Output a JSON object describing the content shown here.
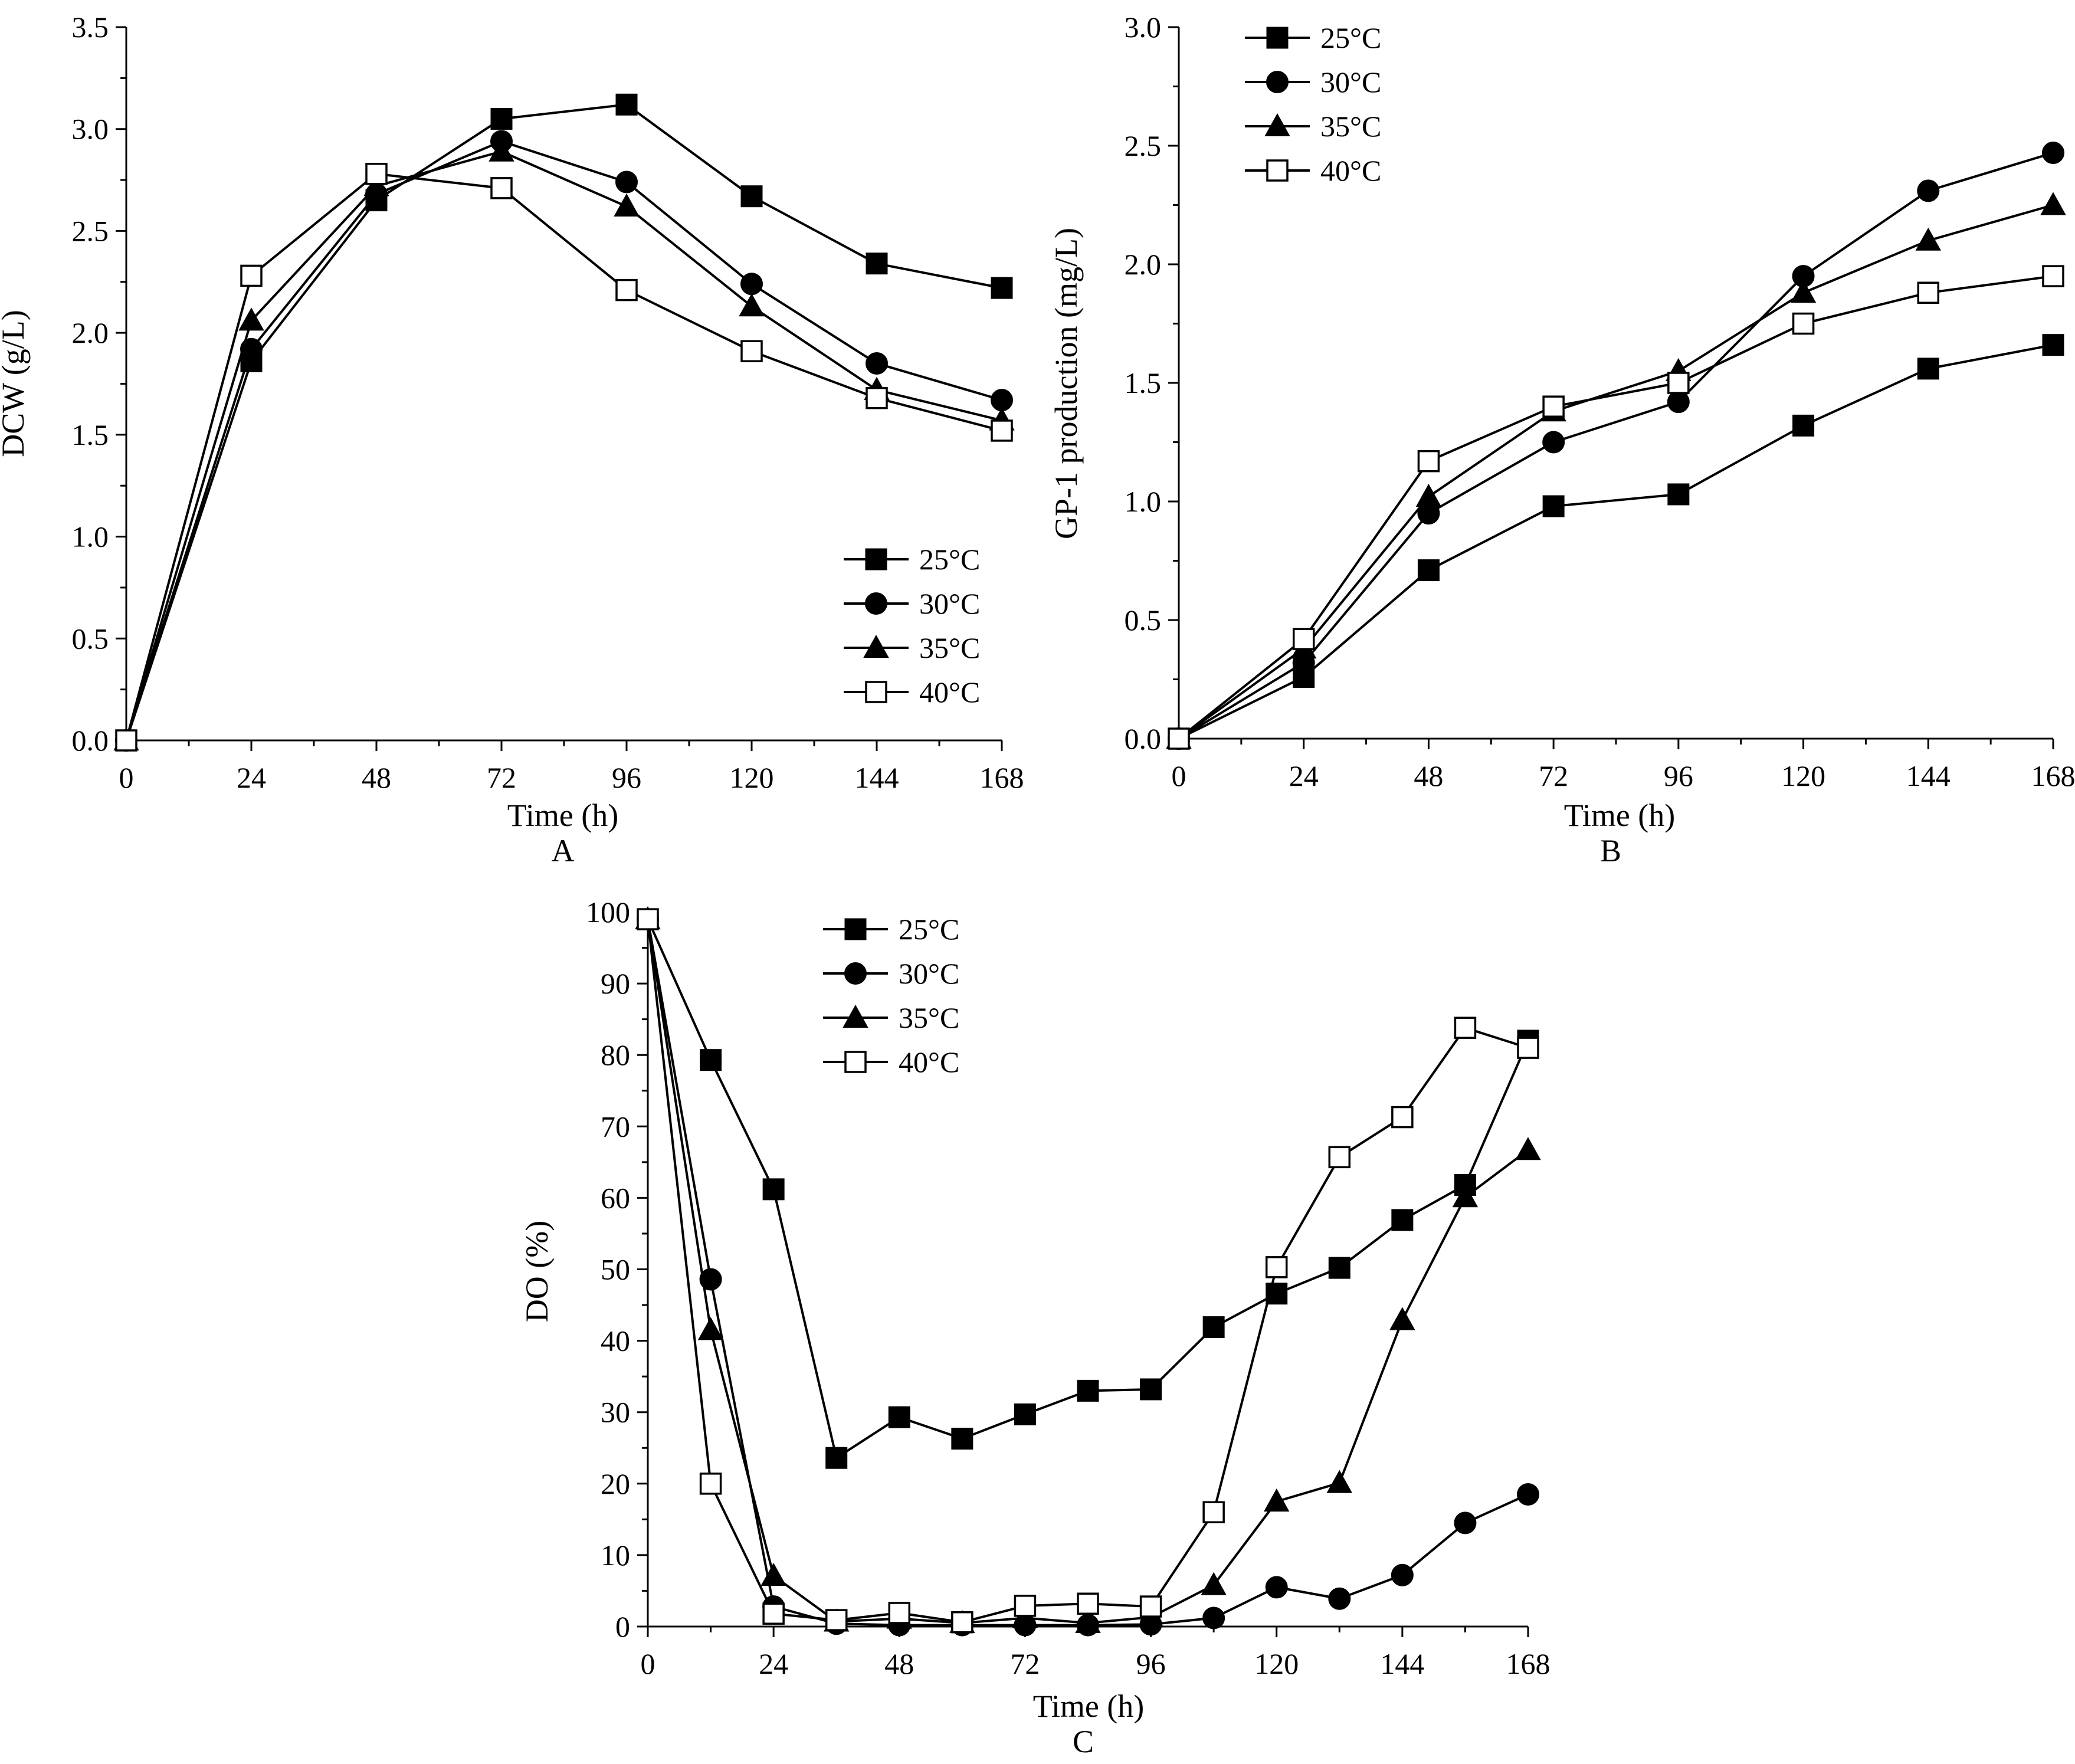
{
  "chart_data": [
    {
      "panel": "A",
      "type": "line",
      "xlabel": "Time (h)",
      "ylabel": "DCW (g/L)",
      "xlim": [
        0,
        168
      ],
      "ylim": [
        0,
        3.5
      ],
      "xticks": [
        "0",
        "24",
        "48",
        "72",
        "96",
        "120",
        "144",
        "168"
      ],
      "yticks": [
        "0.0",
        "0.5",
        "1.0",
        "1.5",
        "2.0",
        "2.5",
        "3.0",
        "3.5"
      ],
      "legend_position": "bottom-right",
      "series": [
        {
          "name": "25°C",
          "marker": "square-filled",
          "points": [
            [
              0,
              0
            ],
            [
              24,
              1.86
            ],
            [
              48,
              2.65
            ],
            [
              72,
              3.05
            ],
            [
              96,
              3.12
            ],
            [
              120,
              2.67
            ],
            [
              144,
              2.34
            ],
            [
              168,
              2.22
            ]
          ]
        },
        {
          "name": "30°C",
          "marker": "circle-filled",
          "points": [
            [
              0,
              0
            ],
            [
              24,
              1.92
            ],
            [
              48,
              2.68
            ],
            [
              72,
              2.94
            ],
            [
              96,
              2.74
            ],
            [
              120,
              2.24
            ],
            [
              144,
              1.85
            ],
            [
              168,
              1.67
            ]
          ]
        },
        {
          "name": "35°C",
          "marker": "triangle-filled",
          "points": [
            [
              0,
              0
            ],
            [
              24,
              2.06
            ],
            [
              48,
              2.72
            ],
            [
              72,
              2.89
            ],
            [
              96,
              2.62
            ],
            [
              120,
              2.13
            ],
            [
              144,
              1.72
            ],
            [
              168,
              1.57
            ]
          ]
        },
        {
          "name": "40°C",
          "marker": "square-open",
          "points": [
            [
              0,
              0
            ],
            [
              24,
              2.28
            ],
            [
              48,
              2.78
            ],
            [
              72,
              2.71
            ],
            [
              96,
              2.21
            ],
            [
              120,
              1.91
            ],
            [
              144,
              1.68
            ],
            [
              168,
              1.52
            ]
          ]
        }
      ]
    },
    {
      "panel": "B",
      "type": "line",
      "xlabel": "Time (h)",
      "ylabel": "GP-1 production (mg/L)",
      "xlim": [
        0,
        168
      ],
      "ylim": [
        0,
        3.0
      ],
      "xticks": [
        "0",
        "24",
        "48",
        "72",
        "96",
        "120",
        "144",
        "168"
      ],
      "yticks": [
        "0.0",
        "0.5",
        "1.0",
        "1.5",
        "2.0",
        "2.5",
        "3.0"
      ],
      "legend_position": "top-left",
      "series": [
        {
          "name": "25°C",
          "marker": "square-filled",
          "points": [
            [
              0,
              0
            ],
            [
              24,
              0.26
            ],
            [
              48,
              0.71
            ],
            [
              72,
              0.98
            ],
            [
              96,
              1.03
            ],
            [
              120,
              1.32
            ],
            [
              144,
              1.56
            ],
            [
              168,
              1.66
            ]
          ]
        },
        {
          "name": "30°C",
          "marker": "circle-filled",
          "points": [
            [
              0,
              0
            ],
            [
              24,
              0.32
            ],
            [
              48,
              0.95
            ],
            [
              72,
              1.25
            ],
            [
              96,
              1.42
            ],
            [
              120,
              1.95
            ],
            [
              144,
              2.31
            ],
            [
              168,
              2.47
            ]
          ]
        },
        {
          "name": "35°C",
          "marker": "triangle-filled",
          "points": [
            [
              0,
              0
            ],
            [
              24,
              0.38
            ],
            [
              48,
              1.02
            ],
            [
              72,
              1.38
            ],
            [
              96,
              1.55
            ],
            [
              120,
              1.88
            ],
            [
              144,
              2.1
            ],
            [
              168,
              2.25
            ]
          ]
        },
        {
          "name": "40°C",
          "marker": "square-open",
          "points": [
            [
              0,
              0
            ],
            [
              24,
              0.42
            ],
            [
              48,
              1.17
            ],
            [
              72,
              1.4
            ],
            [
              96,
              1.5
            ],
            [
              120,
              1.75
            ],
            [
              144,
              1.88
            ],
            [
              168,
              1.95
            ]
          ]
        }
      ]
    },
    {
      "panel": "C",
      "type": "line",
      "xlabel": "Time (h)",
      "ylabel": "DO (%)",
      "xlim": [
        0,
        168
      ],
      "ylim": [
        0,
        100
      ],
      "xticks": [
        "0",
        "24",
        "48",
        "72",
        "96",
        "120",
        "144",
        "168"
      ],
      "yticks": [
        "0",
        "10",
        "20",
        "30",
        "40",
        "50",
        "60",
        "70",
        "80",
        "90",
        "100"
      ],
      "legend_position": "top-left",
      "series": [
        {
          "name": "25°C",
          "marker": "square-filled",
          "points": [
            [
              0,
              99
            ],
            [
              12,
              79.3
            ],
            [
              24,
              61.2
            ],
            [
              36,
              23.6
            ],
            [
              48,
              29.3
            ],
            [
              60,
              26.3
            ],
            [
              72,
              29.7
            ],
            [
              84,
              33
            ],
            [
              96,
              33.2
            ],
            [
              108,
              41.9
            ],
            [
              120,
              46.6
            ],
            [
              132,
              50.2
            ],
            [
              144,
              56.9
            ],
            [
              156,
              61.8
            ],
            [
              168,
              82
            ]
          ]
        },
        {
          "name": "30°C",
          "marker": "circle-filled",
          "points": [
            [
              0,
              99
            ],
            [
              12,
              48.6
            ],
            [
              24,
              2.8
            ],
            [
              36,
              0.4
            ],
            [
              48,
              0.2
            ],
            [
              60,
              0.2
            ],
            [
              72,
              0.2
            ],
            [
              84,
              0.2
            ],
            [
              96,
              0.3
            ],
            [
              108,
              1.2
            ],
            [
              120,
              5.5
            ],
            [
              132,
              3.9
            ],
            [
              144,
              7.2
            ],
            [
              156,
              14.5
            ],
            [
              168,
              18.5
            ]
          ]
        },
        {
          "name": "35°C",
          "marker": "triangle-filled",
          "points": [
            [
              0,
              99
            ],
            [
              12,
              41.5
            ],
            [
              24,
              7.1
            ],
            [
              36,
              0.7
            ],
            [
              48,
              1.1
            ],
            [
              60,
              0.5
            ],
            [
              72,
              1.2
            ],
            [
              84,
              0.5
            ],
            [
              96,
              1.3
            ],
            [
              108,
              5.8
            ],
            [
              120,
              17.5
            ],
            [
              132,
              20.1
            ],
            [
              144,
              42.9
            ],
            [
              156,
              60.1
            ],
            [
              168,
              66.7
            ]
          ]
        },
        {
          "name": "40°C",
          "marker": "square-open",
          "points": [
            [
              0,
              99
            ],
            [
              12,
              20
            ],
            [
              24,
              1.8
            ],
            [
              36,
              0.9
            ],
            [
              48,
              1.9
            ],
            [
              60,
              0.6
            ],
            [
              72,
              2.9
            ],
            [
              84,
              3.2
            ],
            [
              96,
              2.8
            ],
            [
              108,
              16
            ],
            [
              120,
              50.3
            ],
            [
              132,
              65.7
            ],
            [
              144,
              71.3
            ],
            [
              156,
              83.8
            ],
            [
              168,
              81
            ]
          ]
        }
      ]
    }
  ],
  "panels": {
    "A": {
      "letter": "A"
    },
    "B": {
      "letter": "B"
    },
    "C": {
      "letter": "C"
    }
  }
}
